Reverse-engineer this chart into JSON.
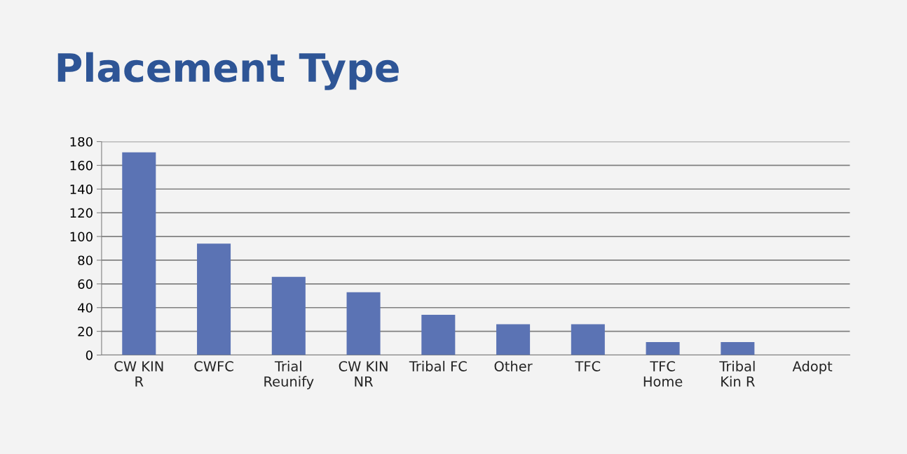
{
  "chart_data": {
    "type": "bar",
    "title": "Placement Type",
    "categories": [
      "CW KIN\nR",
      "CWFC",
      "Trial\nReunify",
      "CW KIN\nNR",
      "Tribal FC",
      "Other",
      "TFC",
      "TFC\nHome",
      "Tribal\nKin R",
      "Adopt"
    ],
    "values": [
      171,
      94,
      66,
      53,
      34,
      26,
      26,
      11,
      11,
      0
    ],
    "color": "#5b73b4",
    "ylim": [
      0,
      180
    ],
    "yticks": [
      0,
      20,
      40,
      60,
      80,
      100,
      120,
      140,
      160,
      180
    ],
    "grid": "y"
  }
}
